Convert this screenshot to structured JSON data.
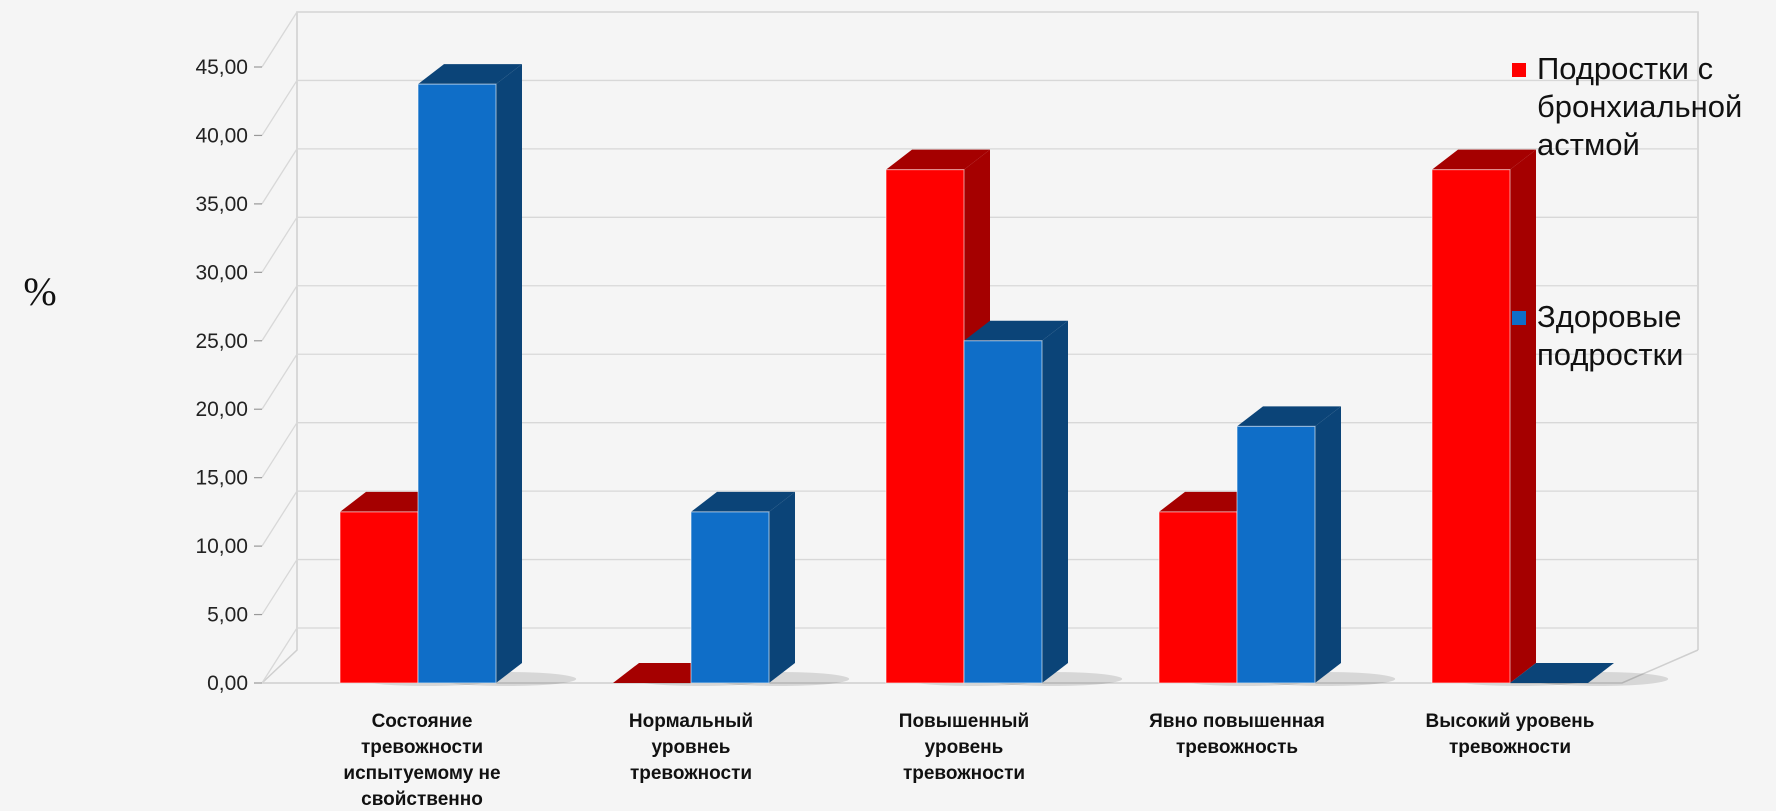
{
  "chart_data": {
    "type": "bar",
    "ylabel": "%",
    "ylim": [
      0,
      45
    ],
    "yticks": [
      "0,00",
      "5,00",
      "10,00",
      "15,00",
      "20,00",
      "25,00",
      "30,00",
      "35,00",
      "40,00",
      "45,00"
    ],
    "categories": [
      [
        "Состояние",
        "тревожности",
        "испытуемому не",
        "свойственно"
      ],
      [
        "Нормальный",
        "уровнеь",
        "тревожности"
      ],
      [
        "Повышенный",
        "уровень",
        "тревожности"
      ],
      [
        "Явно повышенная",
        "тревожность"
      ],
      [
        "Высокий уровень",
        "тревожности"
      ]
    ],
    "series": [
      {
        "name": [
          "Подростки  с",
          "бронхиальной",
          "астмой"
        ],
        "color": "#ff0000",
        "side_color": "#a50000",
        "values": [
          12.5,
          0,
          37.5,
          12.5,
          37.5
        ]
      },
      {
        "name": [
          "Здоровые",
          "подростки"
        ],
        "color": "#0f6ec8",
        "side_color": "#0b4478",
        "values": [
          43.75,
          12.5,
          25.0,
          18.75,
          0
        ]
      }
    ],
    "grid": true,
    "legend_position": "right",
    "style": "3d"
  }
}
